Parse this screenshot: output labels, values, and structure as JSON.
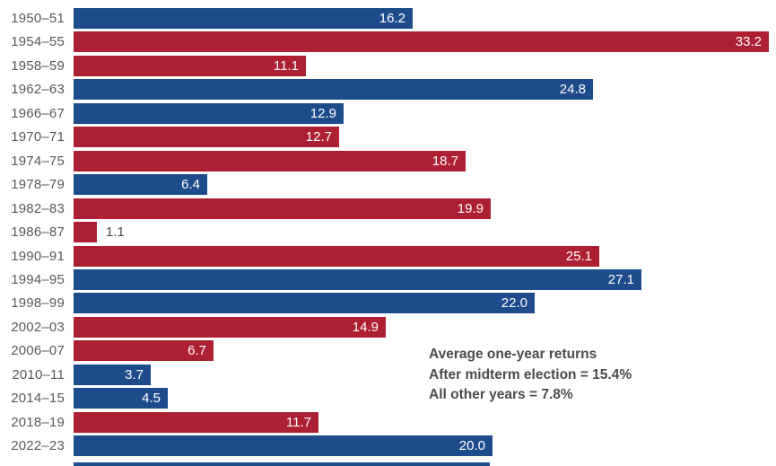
{
  "chart_data": {
    "type": "bar",
    "orientation": "horizontal",
    "title": "",
    "xlabel": "",
    "ylabel": "",
    "xlim": [
      0,
      33.2
    ],
    "grid": false,
    "legend": false,
    "categories": [
      "1950–51",
      "1954–55",
      "1958–59",
      "1962–63",
      "1966–67",
      "1970–71",
      "1974–75",
      "1978–79",
      "1982–83",
      "1986–87",
      "1990–91",
      "1994–95",
      "1998–99",
      "2002–03",
      "2006–07",
      "2010–11",
      "2014–15",
      "2018–19",
      "2022–23"
    ],
    "values": [
      16.2,
      33.2,
      11.1,
      24.8,
      12.9,
      12.7,
      18.7,
      6.4,
      19.9,
      1.1,
      25.1,
      27.1,
      22.0,
      14.9,
      6.7,
      3.7,
      4.5,
      11.7,
      20.0
    ],
    "value_labels": [
      "16.2",
      "33.2",
      "11.1",
      "24.8",
      "12.9",
      "12.7",
      "18.7",
      "6.4",
      "19.9",
      "1.1",
      "25.1",
      "27.1",
      "22.0",
      "14.9",
      "6.7",
      "3.7",
      "4.5",
      "11.7",
      "20.0"
    ],
    "bar_colors": [
      "blue",
      "red",
      "red",
      "blue",
      "blue",
      "red",
      "red",
      "blue",
      "red",
      "red",
      "red",
      "blue",
      "blue",
      "red",
      "red",
      "blue",
      "blue",
      "red",
      "blue"
    ],
    "annotation": {
      "lines": [
        "Average one-year returns",
        "After midterm election = 15.4%",
        "All other years = 7.8%"
      ]
    },
    "partial_bottom_bar": {
      "color": "blue",
      "value": 20.0
    }
  },
  "colors": {
    "blue": "#1e4b8b",
    "red": "#ad1f33",
    "category_label": "#58595b",
    "value_label_inside": "#ffffff",
    "value_label_outside": "#4a4b4d",
    "annotation_text": "#4a4b4d",
    "background": "#ffffff"
  }
}
